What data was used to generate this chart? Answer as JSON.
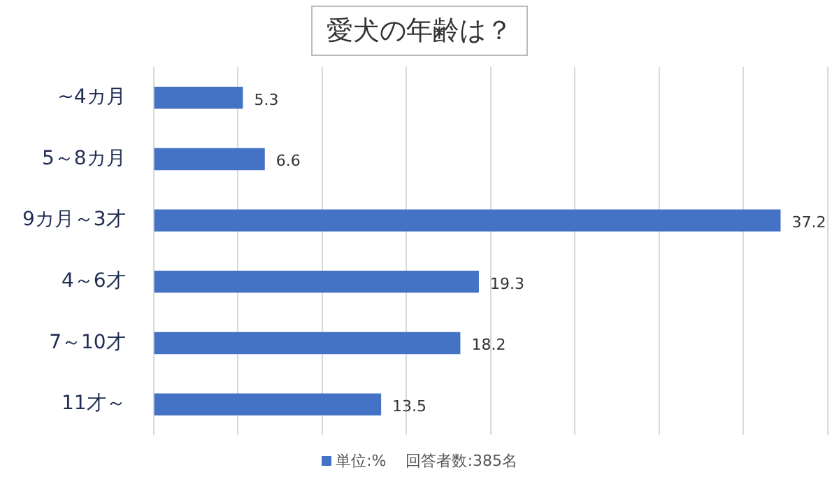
{
  "chart_data": {
    "type": "bar",
    "orientation": "horizontal",
    "title": "愛犬の年齢は？",
    "categories": [
      "~4カ月",
      "5～8カ月",
      "9カ月～3才",
      "4～6才",
      "7～10才",
      "11才～"
    ],
    "series": [
      {
        "name": "単位:%",
        "color": "#4472c4",
        "values": [
          5.3,
          6.6,
          37.2,
          19.3,
          18.2,
          13.5
        ]
      }
    ],
    "xlim": [
      0,
      40
    ],
    "xticks": [
      {
        "value": 0,
        "label": null
      },
      {
        "value": 5,
        "label": null
      },
      {
        "value": 10,
        "label": null
      },
      {
        "value": 15,
        "label": null
      },
      {
        "value": 20,
        "label": null
      },
      {
        "value": 25,
        "label": null
      },
      {
        "value": 30,
        "label": null
      },
      {
        "value": 35,
        "label": null
      },
      {
        "value": 40,
        "label": null
      }
    ],
    "tick_labels": "y",
    "grid": "x",
    "legend": "bottom",
    "data_labels": true,
    "annotations": [
      "回答者数:385名"
    ]
  }
}
